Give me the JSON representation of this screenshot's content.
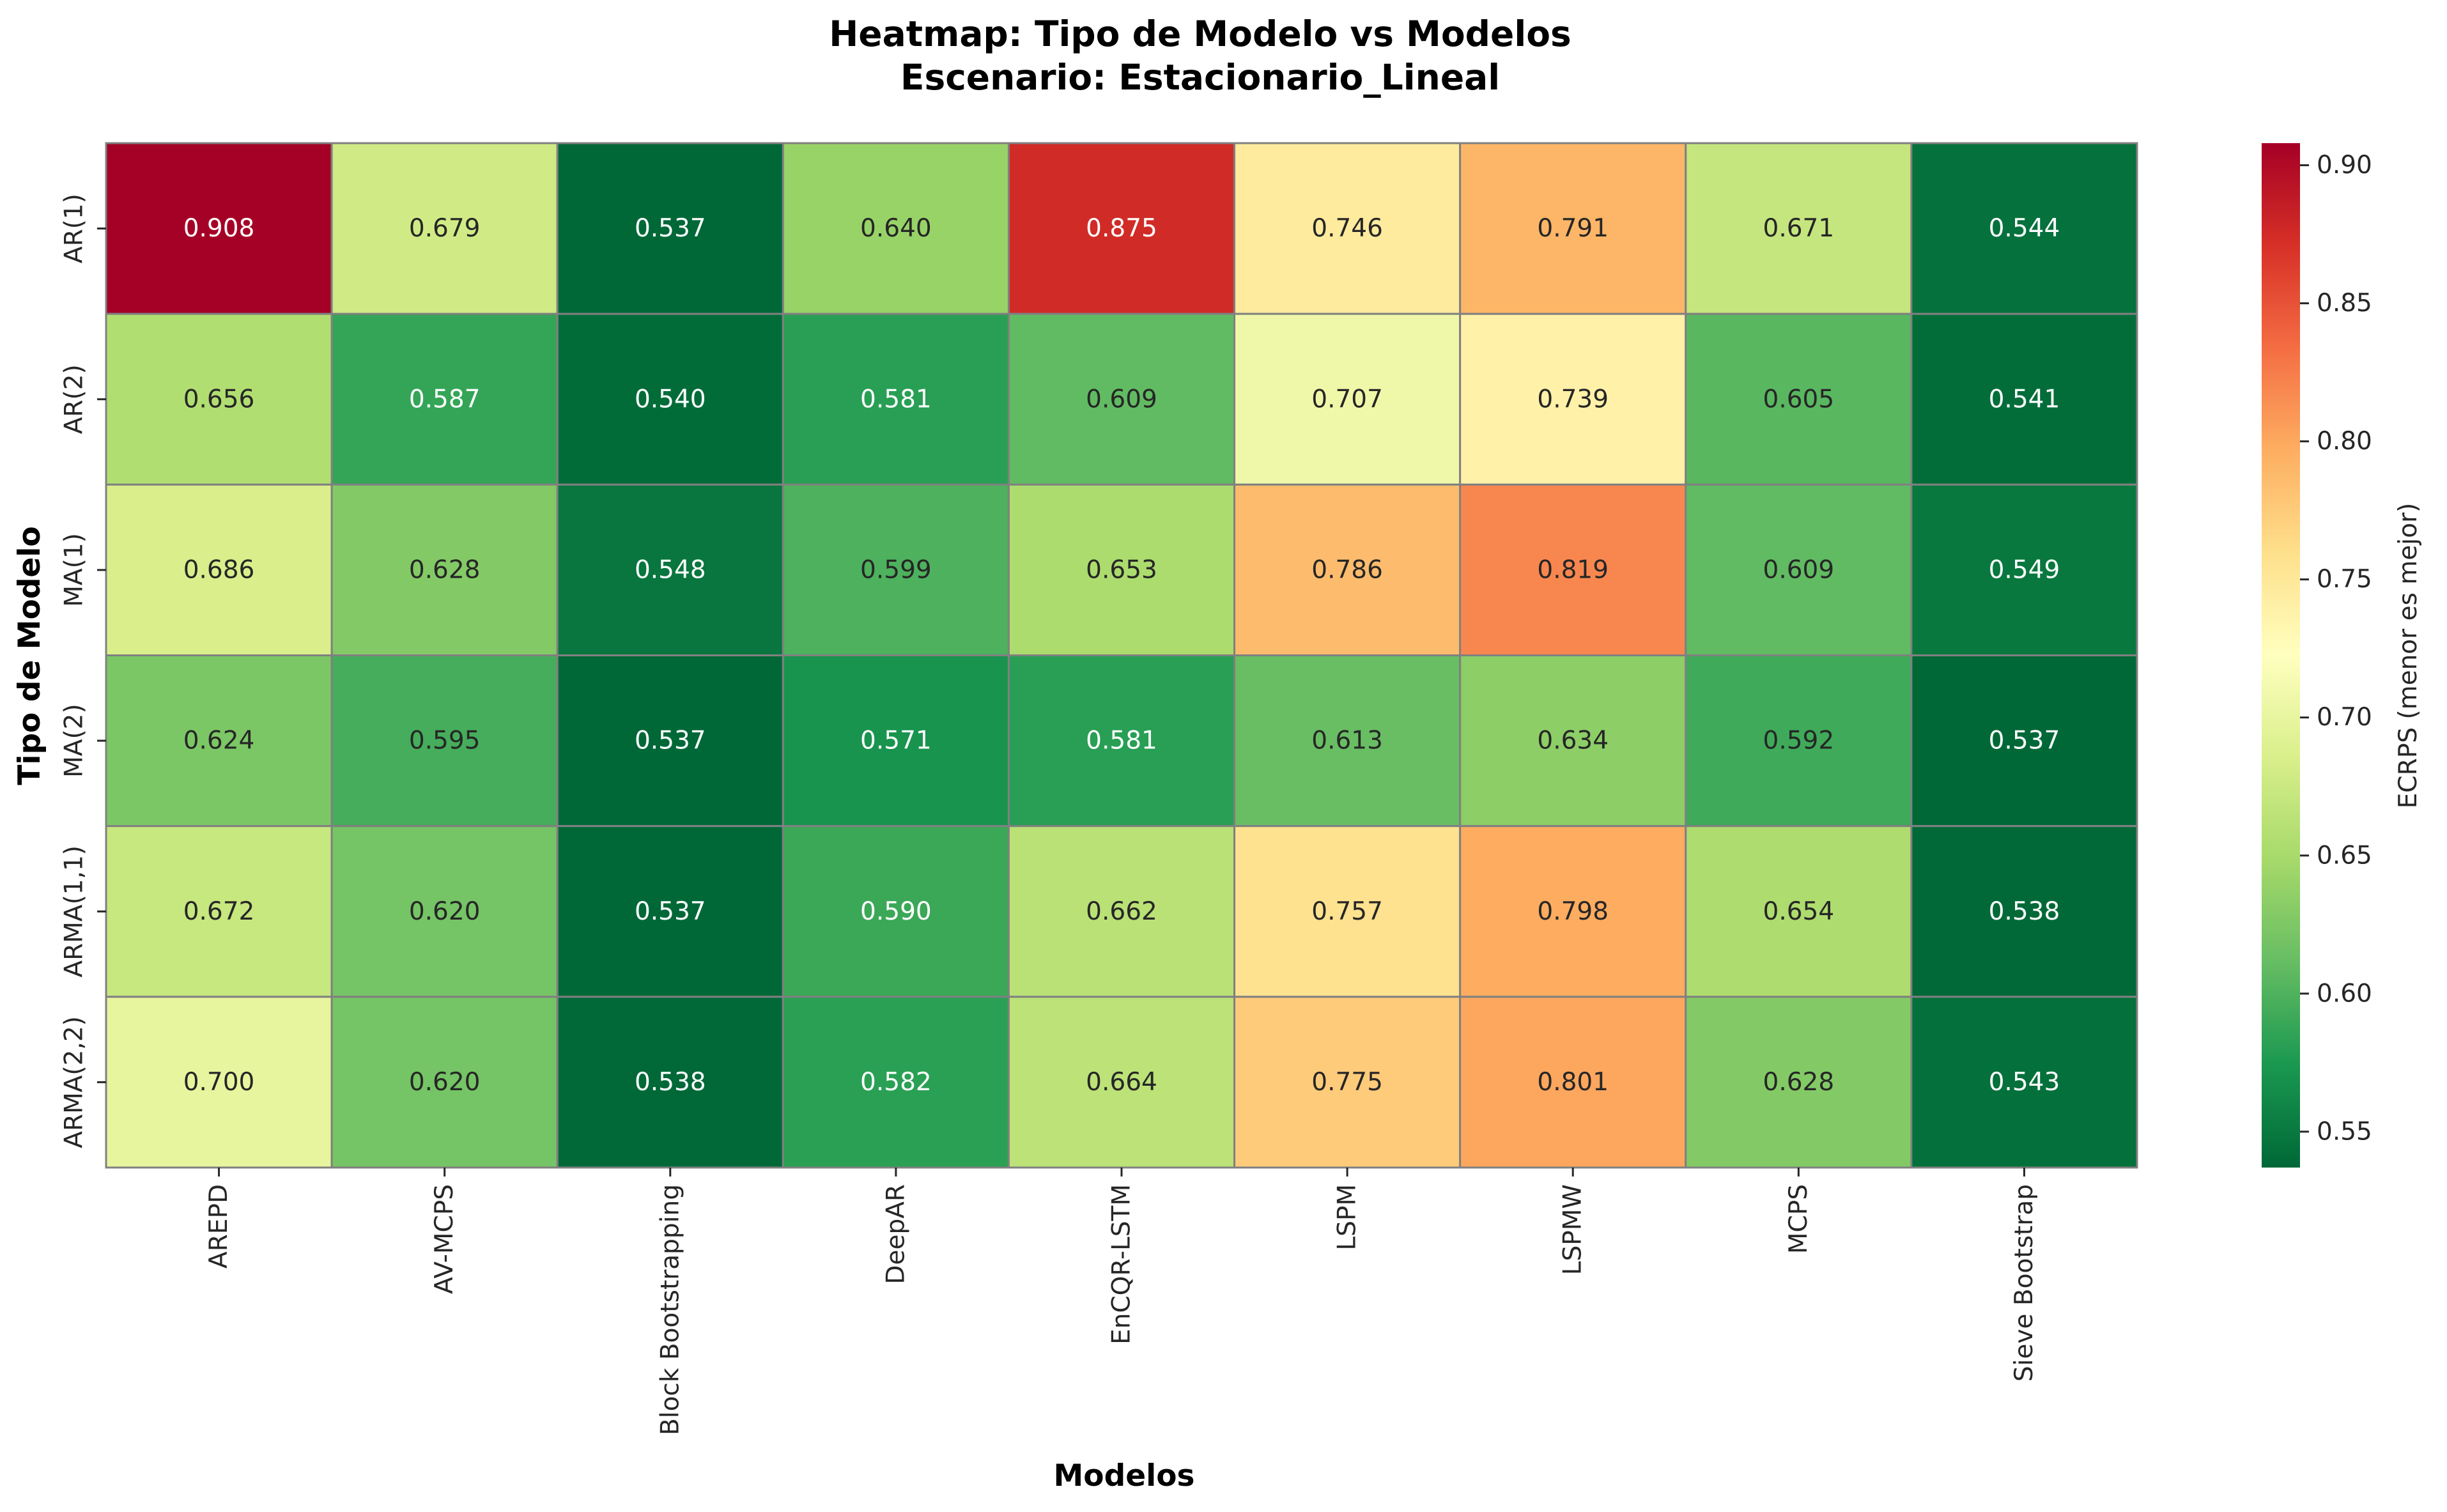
{
  "chart_data": {
    "type": "heatmap",
    "title": "Heatmap: Tipo de Modelo vs Modelos",
    "subtitle": "Escenario: Estacionario_Lineal",
    "xlabel": "Modelos",
    "ylabel": "Tipo de Modelo",
    "x_categories": [
      "AREPD",
      "AV-MCPS",
      "Block Bootstrapping",
      "DeepAR",
      "EnCQR-LSTM",
      "LSPM",
      "LSPMW",
      "MCPS",
      "Sieve Bootstrap"
    ],
    "y_categories": [
      "AR(1)",
      "AR(2)",
      "MA(1)",
      "MA(2)",
      "ARMA(1,1)",
      "ARMA(2,2)"
    ],
    "values": [
      [
        0.908,
        0.679,
        0.537,
        0.64,
        0.875,
        0.746,
        0.791,
        0.671,
        0.544
      ],
      [
        0.656,
        0.587,
        0.54,
        0.581,
        0.609,
        0.707,
        0.739,
        0.605,
        0.541
      ],
      [
        0.686,
        0.628,
        0.548,
        0.599,
        0.653,
        0.786,
        0.819,
        0.609,
        0.549
      ],
      [
        0.624,
        0.595,
        0.537,
        0.571,
        0.581,
        0.613,
        0.634,
        0.592,
        0.537
      ],
      [
        0.672,
        0.62,
        0.537,
        0.59,
        0.662,
        0.757,
        0.798,
        0.654,
        0.538
      ],
      [
        0.7,
        0.62,
        0.538,
        0.582,
        0.664,
        0.775,
        0.801,
        0.628,
        0.543
      ]
    ],
    "colormap": "RdYlGn_r",
    "colorbar": {
      "label": "ECRPS (menor es mejor)",
      "vmin": 0.537,
      "vmax": 0.908,
      "ticks": [
        "0.55",
        "0.60",
        "0.65",
        "0.70",
        "0.75",
        "0.80",
        "0.85",
        "0.90"
      ]
    },
    "cell_border_color": "#808080",
    "grid": false,
    "legend": "colorbar-right"
  }
}
